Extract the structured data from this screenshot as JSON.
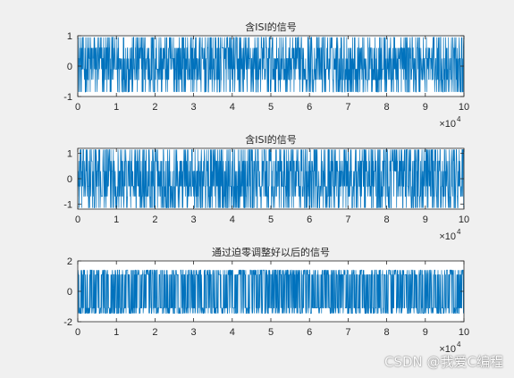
{
  "watermark": "CSDN @我爱C编程",
  "colors": {
    "background": "#f0f0f0",
    "axes_background": "#ffffff",
    "line": "#0072bd",
    "axis": "#262626"
  },
  "chart_data": [
    {
      "type": "line",
      "title": "含ISI的信号",
      "xlabel": "",
      "ylabel": "",
      "xlim": [
        0,
        100000
      ],
      "ylim": [
        -1,
        1
      ],
      "x_tick_labels": [
        "0",
        "1",
        "2",
        "3",
        "4",
        "5",
        "6",
        "7",
        "8",
        "9",
        "10"
      ],
      "y_tick_values": [
        -1,
        0,
        1
      ],
      "y_tick_labels": [
        "-1",
        "0",
        "1"
      ],
      "x_exponent_label": "×10",
      "x_exponent_power": "4",
      "grid": false,
      "series": [
        {
          "color": "#0072bd",
          "levels": [
            -0.85,
            -0.45,
            -0.1,
            0.25,
            0.6,
            0.95
          ],
          "description_levels_note": "",
          "num_points": 100000
        }
      ]
    },
    {
      "type": "line",
      "title": "含ISI的信号",
      "xlabel": "",
      "ylabel": "",
      "xlim": [
        0,
        100000
      ],
      "ylim": [
        -1.2,
        1.2
      ],
      "x_tick_labels": [
        "0",
        "1",
        "2",
        "3",
        "4",
        "5",
        "6",
        "7",
        "8",
        "9",
        "10"
      ],
      "y_tick_values": [
        -1,
        0,
        1
      ],
      "y_tick_labels": [
        "-1",
        "0",
        "1"
      ],
      "x_exponent_label": "×10",
      "x_exponent_power": "4",
      "grid": false,
      "series": [
        {
          "color": "#0072bd",
          "levels": [
            -1.15,
            -0.7,
            -0.3,
            0.3,
            0.7,
            1.15
          ],
          "num_points": 100000
        }
      ]
    },
    {
      "type": "line",
      "title": "通过迫零调整好以后的信号",
      "xlabel": "",
      "ylabel": "",
      "xlim": [
        0,
        100000
      ],
      "ylim": [
        -2,
        2
      ],
      "x_tick_labels": [
        "0",
        "1",
        "2",
        "3",
        "4",
        "5",
        "6",
        "7",
        "8",
        "9",
        "10"
      ],
      "y_tick_values": [
        -2,
        0,
        2
      ],
      "y_tick_labels": [
        "-2",
        "0",
        "2"
      ],
      "x_exponent_label": "×10",
      "x_exponent_power": "4",
      "grid": false,
      "series": [
        {
          "color": "#0072bd",
          "levels": [
            -1.45,
            -1.1,
            1.1,
            1.4
          ],
          "num_points": 100000
        }
      ]
    }
  ]
}
